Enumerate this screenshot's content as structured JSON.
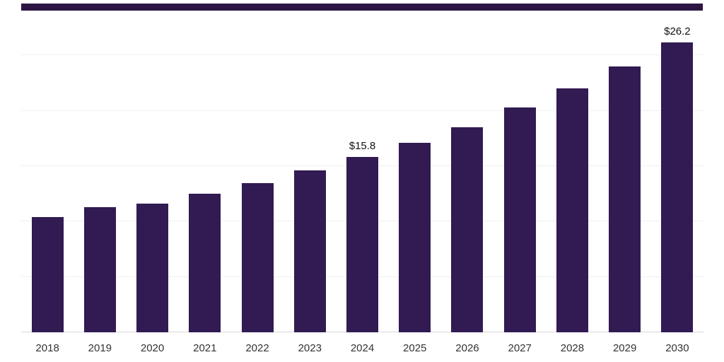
{
  "chart_data": {
    "type": "bar",
    "title": "",
    "xlabel": "",
    "ylabel": "",
    "categories": [
      "2018",
      "2019",
      "2020",
      "2021",
      "2022",
      "2023",
      "2024",
      "2025",
      "2026",
      "2027",
      "2028",
      "2029",
      "2030"
    ],
    "values": [
      10.4,
      11.3,
      11.6,
      12.5,
      13.5,
      14.6,
      15.8,
      17.1,
      18.5,
      20.3,
      22.0,
      24.0,
      26.2
    ],
    "data_labels": [
      {
        "category": "2024",
        "text": "$15.8"
      },
      {
        "category": "2030",
        "text": "$26.2"
      }
    ],
    "ylim": [
      0,
      30
    ],
    "gridline_values": [
      5,
      10,
      15,
      20,
      25
    ],
    "legend": "none",
    "grid": "horizontal",
    "colors": {
      "bar": "#311b52",
      "top_strip": "#2c1543",
      "gridline": "#f0f0f2",
      "axis_line": "#d8d8dc",
      "tick_label": "#333333",
      "data_label": "#111111",
      "background": "#ffffff"
    }
  }
}
